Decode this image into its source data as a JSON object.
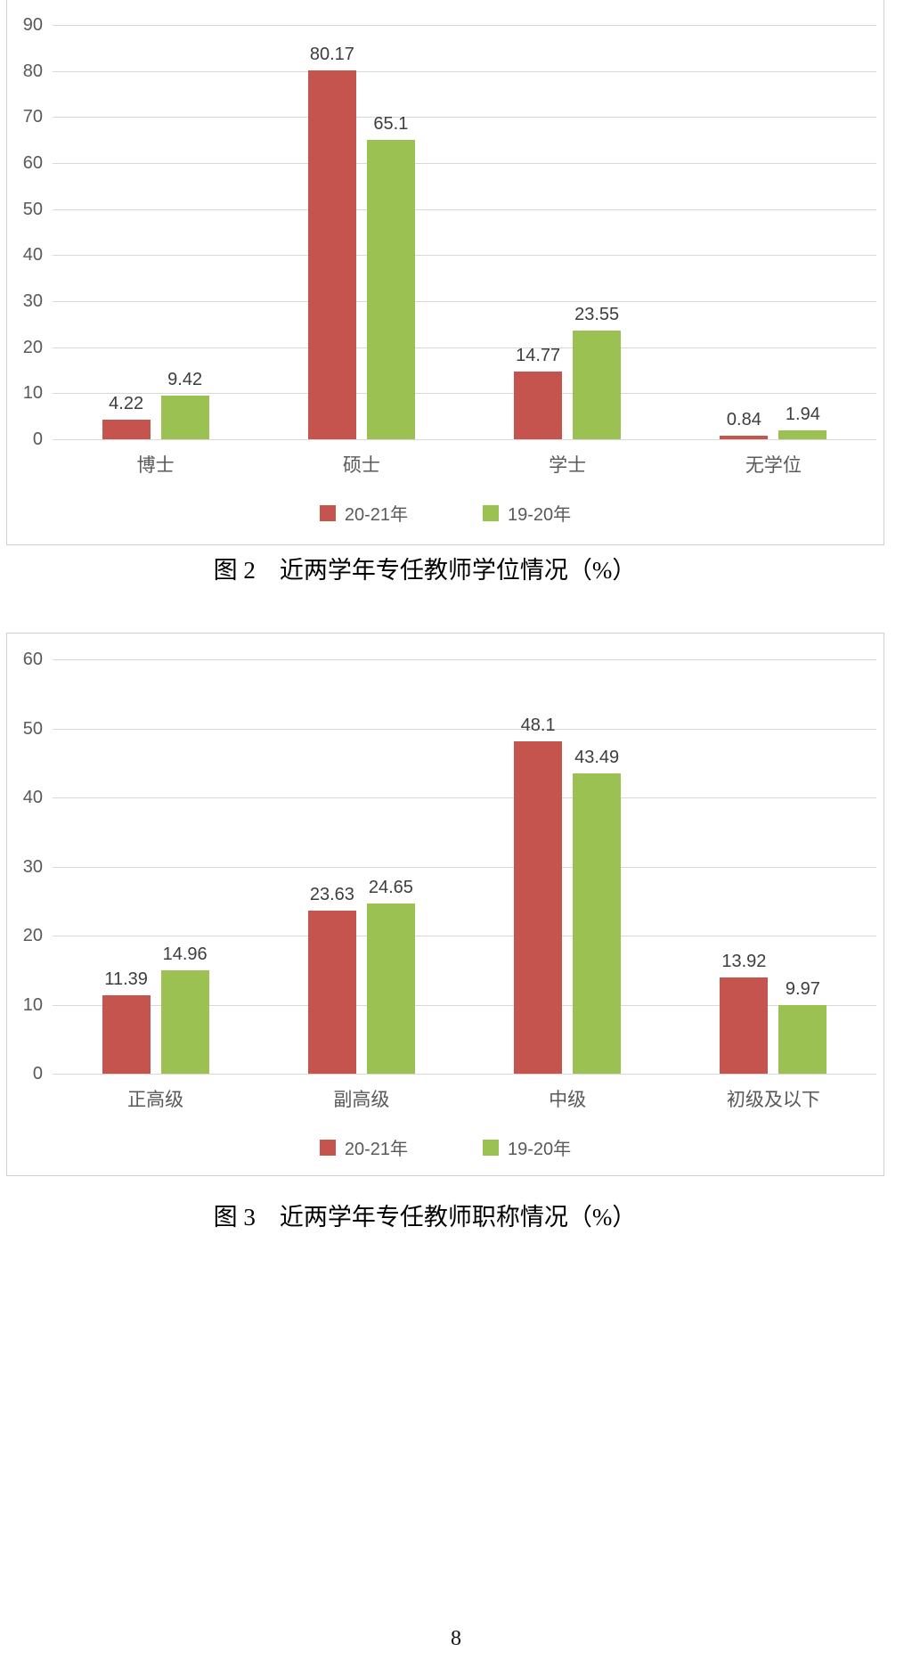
{
  "page": {
    "number": "8"
  },
  "captions": {
    "fig2": "图 2　近两学年专任教师学位情况（%）",
    "fig3": "图 3　近两学年专任教师职称情况（%）"
  },
  "colors": {
    "series_2021": "#c5544e",
    "series_1920": "#9cc153",
    "gridline": "#d9d9d9",
    "tick_text": "#595959",
    "data_label_text": "#3d3d3d",
    "panel_border": "#d2cfcf"
  },
  "chart_data": [
    {
      "type": "bar",
      "title": "图 2　近两学年专任教师学位情况（%）",
      "categories": [
        "博士",
        "硕士",
        "学士",
        "无学位"
      ],
      "series": [
        {
          "name": "20-21年",
          "color_key": "series_2021",
          "values": [
            4.22,
            80.17,
            14.77,
            0.84
          ],
          "labels": [
            "4.22",
            "80.17",
            "14.77",
            "0.84"
          ]
        },
        {
          "name": "19-20年",
          "color_key": "series_1920",
          "values": [
            9.42,
            65.1,
            23.55,
            1.94
          ],
          "labels": [
            "9.42",
            "65.1",
            "23.55",
            "1.94"
          ]
        }
      ],
      "xlabel": "",
      "ylabel": "",
      "ylim": [
        0,
        90
      ],
      "ytick_step": 10,
      "grid": true,
      "legend_position": "bottom"
    },
    {
      "type": "bar",
      "title": "图 3　近两学年专任教师职称情况（%）",
      "categories": [
        "正高级",
        "副高级",
        "中级",
        "初级及以下"
      ],
      "series": [
        {
          "name": "20-21年",
          "color_key": "series_2021",
          "values": [
            11.39,
            23.63,
            48.1,
            13.92
          ],
          "labels": [
            "11.39",
            "23.63",
            "48.1",
            "13.92"
          ]
        },
        {
          "name": "19-20年",
          "color_key": "series_1920",
          "values": [
            14.96,
            24.65,
            43.49,
            9.97
          ],
          "labels": [
            "14.96",
            "24.65",
            "43.49",
            "9.97"
          ]
        }
      ],
      "xlabel": "",
      "ylabel": "",
      "ylim": [
        0,
        60
      ],
      "ytick_step": 10,
      "grid": true,
      "legend_position": "bottom"
    }
  ]
}
